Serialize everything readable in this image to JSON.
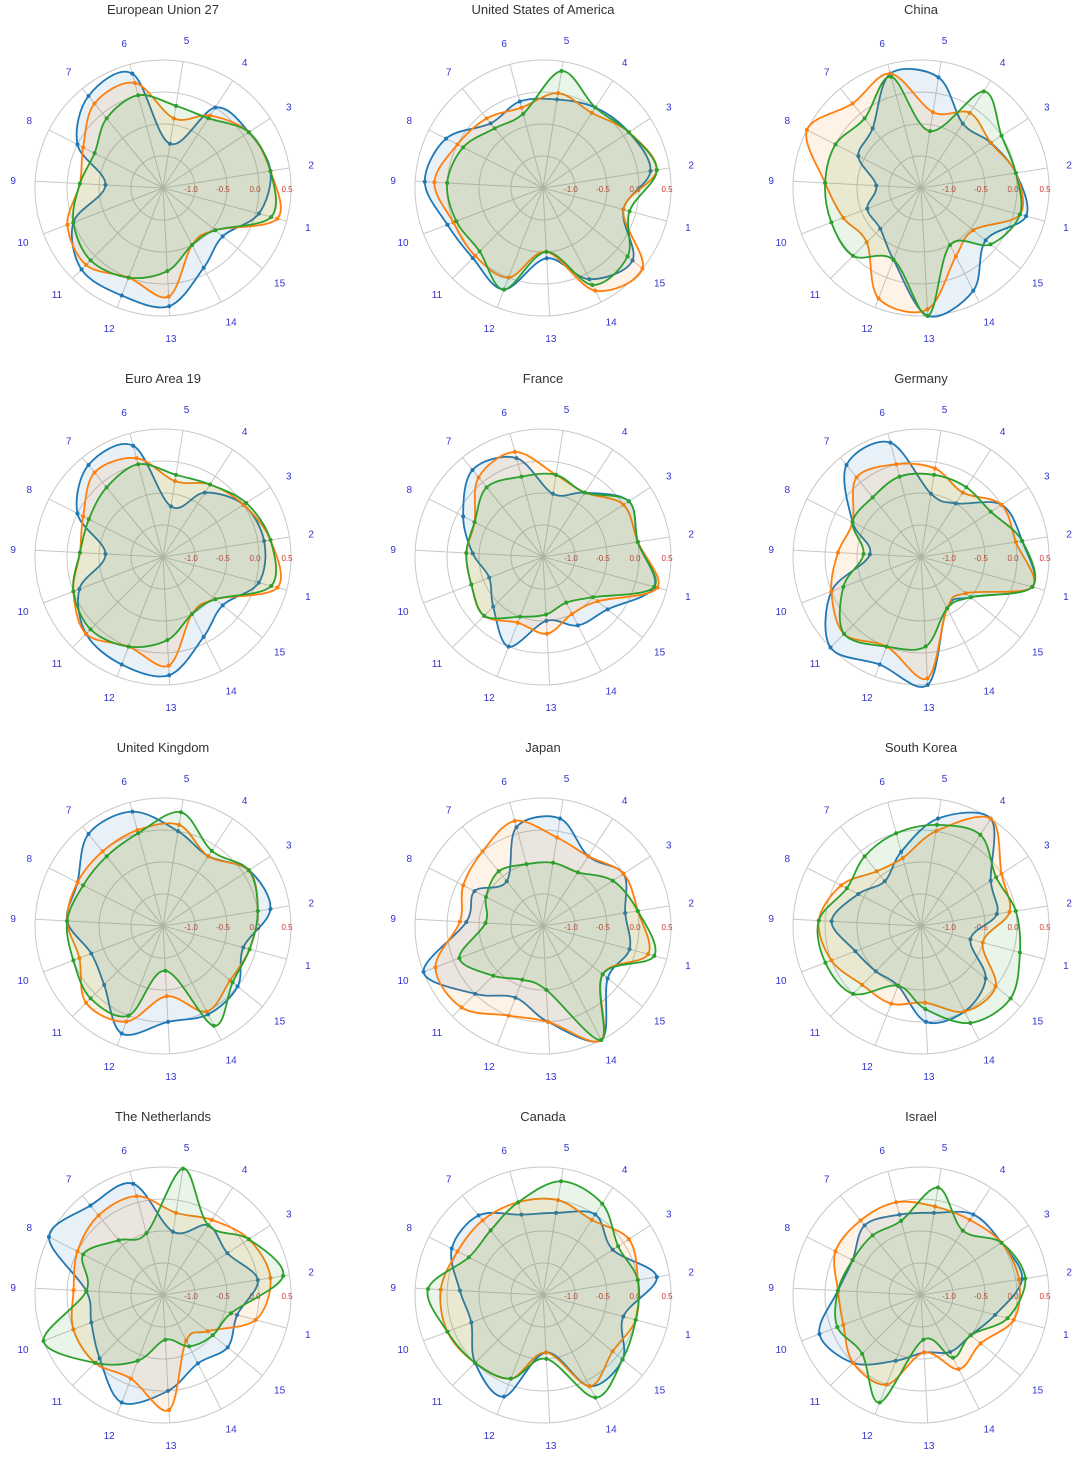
{
  "chart_data": {
    "type": "radar",
    "axis_labels": [
      "1",
      "2",
      "3",
      "4",
      "5",
      "6",
      "7",
      "8",
      "9",
      "10",
      "11",
      "12",
      "13",
      "14",
      "15"
    ],
    "ring_labels": [
      "-1.0",
      "-0.5",
      "0.0",
      "0.5"
    ],
    "rlim": [
      -1.5,
      0.5
    ],
    "colors": [
      "#1f77b4",
      "#ff7f0e",
      "#2ca02c"
    ],
    "charts": [
      {
        "title": "European Union 27",
        "series": [
          [
            0.05,
            0.2,
            0.1,
            0.0,
            -0.8,
            0.35,
            0.35,
            0.0,
            -0.6,
            0.0,
            0.3,
            0.3,
            0.35,
            -0.1,
            -0.3
          ],
          [
            0.35,
            0.2,
            0.1,
            -0.15,
            -0.4,
            0.2,
            0.2,
            -0.1,
            -0.2,
            0.1,
            0.2,
            0.0,
            0.2,
            -0.5,
            -0.45
          ],
          [
            0.25,
            0.2,
            0.1,
            -0.2,
            -0.2,
            0.0,
            -0.1,
            -0.3,
            -0.2,
            0.0,
            0.1,
            0.0,
            -0.2,
            -0.5,
            -0.45
          ]
        ]
      },
      {
        "title": "United States of America",
        "series": [
          [
            -0.2,
            0.2,
            0.1,
            0.0,
            -0.1,
            -0.1,
            -0.2,
            0.2,
            0.35,
            0.1,
            0.05,
            0.2,
            -0.4,
            0.1,
            0.3
          ],
          [
            -0.2,
            0.3,
            0.1,
            -0.1,
            0.0,
            -0.2,
            -0.1,
            0.0,
            0.2,
            0.0,
            0.0,
            0.0,
            -0.5,
            0.3,
            0.5
          ],
          [
            -0.1,
            0.3,
            0.1,
            0.0,
            0.35,
            -0.3,
            -0.3,
            -0.1,
            0.0,
            -0.05,
            -0.1,
            0.2,
            -0.5,
            0.2,
            0.2
          ]
        ]
      },
      {
        "title": "China",
        "series": [
          [
            0.2,
            0.0,
            -0.2,
            -0.3,
            0.25,
            0.35,
            -0.3,
            -0.4,
            -0.8,
            -0.6,
            -0.6,
            -0.3,
            0.5,
            0.3,
            -0.2
          ],
          [
            0.1,
            0.0,
            -0.2,
            -0.1,
            -0.3,
            0.35,
            0.2,
            0.5,
            0.0,
            -0.2,
            -0.3,
            0.35,
            0.4,
            -0.3,
            -0.45
          ],
          [
            0.1,
            0.0,
            0.0,
            0.3,
            -0.6,
            0.3,
            -0.1,
            0.0,
            0.0,
            0.0,
            0.0,
            -0.3,
            0.5,
            -0.5,
            -0.1
          ]
        ]
      },
      {
        "title": "Euro Area 19",
        "series": [
          [
            0.05,
            0.1,
            0.0,
            -0.3,
            -0.7,
            0.3,
            0.35,
            0.0,
            -0.6,
            -0.1,
            0.2,
            0.3,
            0.35,
            -0.1,
            -0.3
          ],
          [
            0.35,
            0.2,
            0.0,
            -0.15,
            -0.3,
            0.1,
            0.2,
            -0.1,
            -0.2,
            0.0,
            0.2,
            0.0,
            0.2,
            -0.5,
            -0.45
          ],
          [
            0.25,
            0.2,
            0.05,
            -0.15,
            -0.2,
            0.0,
            -0.1,
            -0.2,
            -0.2,
            0.0,
            0.1,
            0.0,
            -0.2,
            -0.5,
            -0.45
          ]
        ]
      },
      {
        "title": "France",
        "series": [
          [
            0.3,
            0.0,
            0.1,
            -0.3,
            -0.5,
            0.1,
            0.25,
            -0.1,
            -0.4,
            -0.6,
            -0.4,
            0.0,
            -0.5,
            -0.3,
            -0.2
          ],
          [
            0.35,
            0.0,
            0.0,
            -0.3,
            -0.2,
            0.2,
            0.1,
            -0.3,
            -0.3,
            -0.3,
            -0.2,
            -0.4,
            -0.3,
            -0.5,
            -0.4
          ],
          [
            0.3,
            0.0,
            0.1,
            -0.3,
            -0.2,
            -0.2,
            -0.1,
            -0.3,
            -0.3,
            -0.3,
            -0.2,
            -0.5,
            -0.6,
            -0.7,
            -0.5
          ]
        ]
      },
      {
        "title": "Germany",
        "series": [
          [
            0.3,
            0.1,
            0.0,
            -0.5,
            -0.5,
            0.35,
            0.35,
            -0.3,
            -0.7,
            0.0,
            0.5,
            0.3,
            0.5,
            -0.6,
            -0.5
          ],
          [
            0.3,
            0.0,
            0.0,
            -0.3,
            -0.1,
            0.0,
            0.1,
            -0.3,
            -0.2,
            0.0,
            0.2,
            0.0,
            0.4,
            -0.6,
            -0.6
          ],
          [
            0.3,
            0.1,
            -0.2,
            -0.2,
            -0.2,
            -0.2,
            -0.3,
            -0.3,
            -0.6,
            -0.2,
            0.2,
            0.0,
            -0.1,
            -0.6,
            -0.5
          ]
        ]
      },
      {
        "title": "United Kingdom",
        "series": [
          [
            -0.2,
            0.2,
            0.1,
            -0.2,
            0.0,
            0.35,
            0.35,
            0.0,
            0.0,
            -0.3,
            -0.2,
            0.3,
            0.0,
            0.05,
            0.0
          ],
          [
            -0.1,
            0.0,
            0.1,
            -0.2,
            0.1,
            0.05,
            0.0,
            0.0,
            0.0,
            -0.1,
            0.2,
            0.1,
            -0.4,
            0.0,
            -0.15
          ],
          [
            -0.1,
            0.0,
            0.1,
            -0.1,
            0.3,
            0.0,
            -0.1,
            -0.1,
            0.0,
            0.0,
            0.1,
            0.0,
            -0.8,
            0.25,
            -0.1
          ]
        ]
      },
      {
        "title": "Japan",
        "series": [
          [
            -0.1,
            -0.2,
            0.0,
            -0.2,
            0.2,
            0.1,
            -0.6,
            -0.3,
            -0.3,
            0.5,
            0.0,
            -0.3,
            0.0,
            0.5,
            -0.2
          ],
          [
            0.2,
            0.0,
            0.0,
            -0.2,
            -0.1,
            0.2,
            0.0,
            -0.1,
            -0.2,
            0.3,
            0.3,
            0.0,
            0.0,
            0.5,
            -0.3
          ],
          [
            0.3,
            0.0,
            -0.2,
            -0.5,
            -0.5,
            -0.5,
            -0.4,
            -0.5,
            -0.6,
            -0.1,
            -0.4,
            -0.6,
            -0.5,
            0.5,
            -0.3
          ]
        ]
      },
      {
        "title": "South Korea",
        "series": [
          [
            -0.7,
            -0.3,
            -0.2,
            0.5,
            0.2,
            -0.3,
            -0.6,
            -0.4,
            -0.1,
            -0.4,
            -0.5,
            -0.5,
            0.0,
            0.0,
            -0.2
          ],
          [
            -0.5,
            -0.1,
            0.0,
            0.5,
            0.0,
            -0.4,
            -0.4,
            -0.1,
            0.1,
            0.0,
            -0.2,
            -0.2,
            -0.3,
            0.0,
            0.0
          ],
          [
            0.1,
            0.0,
            -0.1,
            0.2,
            0.1,
            0.0,
            -0.1,
            -0.2,
            0.1,
            0.1,
            0.0,
            -0.5,
            -0.2,
            0.2,
            0.3
          ]
        ]
      },
      {
        "title": "The Netherlands",
        "series": [
          [
            -0.3,
            0.0,
            -0.3,
            -0.2,
            -0.5,
            0.3,
            0.3,
            0.5,
            -0.3,
            -0.3,
            -0.1,
            0.3,
            0.0,
            -0.3,
            -0.2
          ],
          [
            0.0,
            0.2,
            0.1,
            -0.1,
            -0.2,
            0.1,
            0.1,
            0.0,
            -0.1,
            0.0,
            0.0,
            -0.1,
            0.3,
            -0.7,
            -0.6
          ],
          [
            -0.4,
            0.4,
            0.1,
            -0.2,
            0.5,
            -0.5,
            -0.4,
            -0.1,
            -0.3,
            0.5,
            0.0,
            -0.4,
            -0.8,
            -0.6,
            -0.5
          ]
        ]
      },
      {
        "title": "Canada",
        "series": [
          [
            -0.2,
            0.3,
            -0.2,
            0.0,
            -0.2,
            -0.2,
            0.1,
            0.1,
            -0.2,
            -0.3,
            0.0,
            0.2,
            -0.6,
            0.1,
            0.1
          ],
          [
            0.0,
            0.0,
            0.1,
            -0.1,
            0.0,
            0.0,
            0.0,
            0.0,
            0.1,
            0.1,
            0.0,
            -0.1,
            -0.6,
            0.1,
            -0.1
          ],
          [
            0.0,
            0.0,
            -0.1,
            0.2,
            0.3,
            0.0,
            -0.2,
            -0.2,
            0.3,
            0.1,
            0.0,
            -0.1,
            -0.5,
            0.3,
            0.1
          ]
        ]
      },
      {
        "title": "Israel",
        "series": [
          [
            -0.3,
            0.1,
            0.0,
            0.0,
            -0.2,
            -0.2,
            -0.1,
            -0.3,
            -0.2,
            0.2,
            0.0,
            -0.4,
            -0.6,
            -0.5,
            -0.5
          ],
          [
            0.0,
            0.05,
            0.0,
            -0.1,
            -0.1,
            0.0,
            0.0,
            0.0,
            -0.2,
            -0.2,
            0.0,
            0.0,
            -0.6,
            -0.2,
            -0.3
          ],
          [
            -0.1,
            0.15,
            0.0,
            -0.3,
            0.2,
            -0.3,
            -0.3,
            -0.3,
            -0.2,
            -0.1,
            -0.2,
            0.3,
            -0.8,
            -0.4,
            -0.5
          ]
        ]
      }
    ]
  }
}
